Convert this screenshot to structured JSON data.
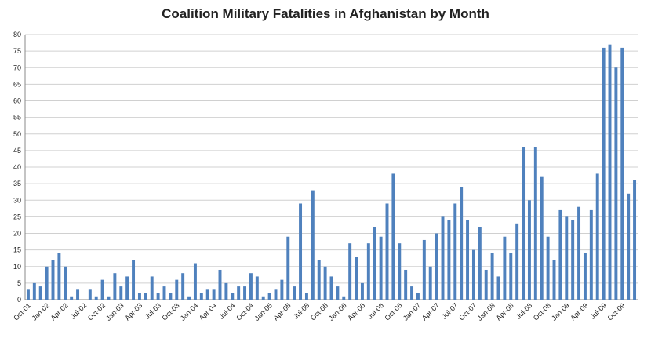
{
  "chart_data": {
    "type": "bar",
    "title": "Coalition Military Fatalities in Afghanistan by Month",
    "xlabel": "",
    "ylabel": "",
    "ylim": [
      0,
      80
    ],
    "yticks": [
      0,
      5,
      10,
      15,
      20,
      25,
      30,
      35,
      40,
      45,
      50,
      55,
      60,
      65,
      70,
      75,
      80
    ],
    "grid": true,
    "bar_color": "#4f81bd",
    "start": "Oct-01",
    "x_tick_labels": [
      "Oct-01",
      "Jan-02",
      "Apr-02",
      "Jul-02",
      "Oct-02",
      "Jan-03",
      "Apr-03",
      "Jul-03",
      "Oct-03",
      "Jan-04",
      "Apr-04",
      "Jul-04",
      "Oct-04",
      "Jan-05",
      "Apr-05",
      "Jul-05",
      "Oct-05",
      "Jan-06",
      "Apr-06",
      "Jul-06",
      "Oct-06",
      "Jan-07",
      "Apr-07",
      "Jul-07",
      "Oct-07",
      "Jan-08",
      "Apr-08",
      "Jul-08",
      "Oct-08",
      "Jan-09",
      "Apr-09",
      "Jul-09",
      "Oct-09"
    ],
    "values": [
      3,
      5,
      4,
      10,
      12,
      14,
      10,
      1,
      3,
      0,
      3,
      1,
      6,
      1,
      8,
      4,
      7,
      12,
      2,
      2,
      7,
      2,
      4,
      2,
      6,
      8,
      1,
      11,
      2,
      3,
      3,
      9,
      5,
      2,
      4,
      4,
      8,
      7,
      1,
      2,
      3,
      6,
      19,
      4,
      29,
      2,
      33,
      12,
      10,
      7,
      4,
      1,
      17,
      13,
      5,
      17,
      22,
      19,
      29,
      38,
      17,
      9,
      4,
      2,
      18,
      10,
      20,
      25,
      24,
      29,
      34,
      24,
      15,
      22,
      9,
      14,
      7,
      19,
      14,
      23,
      46,
      30,
      46,
      37,
      19,
      12,
      27,
      25,
      24,
      28,
      14,
      27,
      38,
      76,
      77,
      70,
      76,
      32,
      36
    ]
  }
}
